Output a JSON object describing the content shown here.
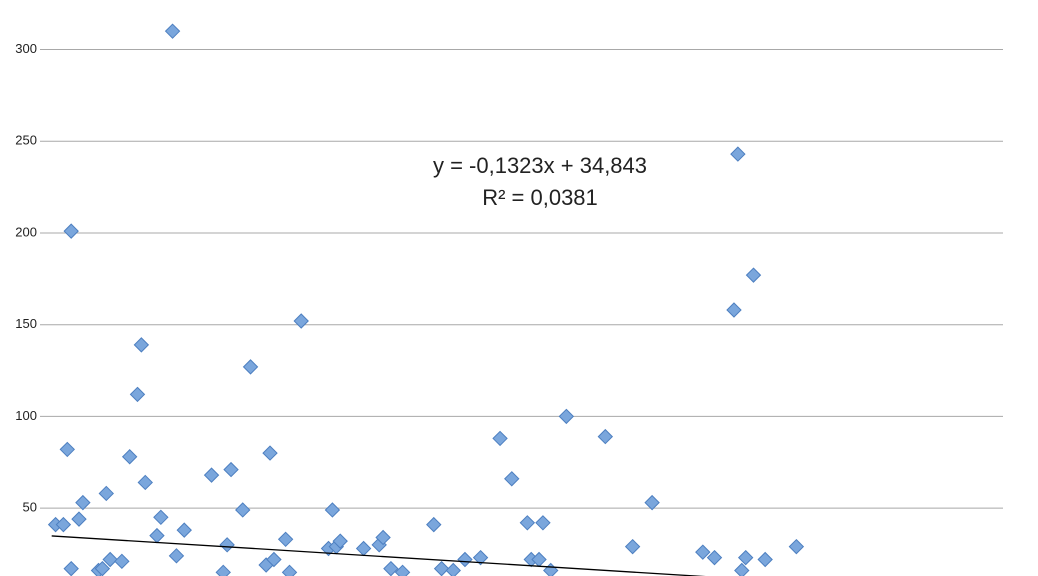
{
  "chart_data": {
    "type": "scatter",
    "color": "#7aa6dc",
    "edge_color": "#4d7fc0",
    "grid": true,
    "xlim": [
      -3,
      244
    ],
    "ylim": [
      13,
      327
    ],
    "yticks": [
      50,
      100,
      150,
      200,
      250,
      300
    ],
    "trendline": {
      "slope": -0.1323,
      "intercept": 34.843,
      "color": "#000000"
    },
    "annotations": [
      "y = -0,1323x + 34,843",
      "R² = 0,0381"
    ],
    "x": [
      1,
      3,
      4,
      5,
      5,
      7,
      8,
      14,
      12,
      13,
      15,
      18,
      20,
      22,
      23,
      24,
      27,
      28,
      31,
      32,
      34,
      41,
      44,
      45,
      46,
      49,
      51,
      55,
      56,
      57,
      60,
      61,
      64,
      71,
      72,
      73,
      74,
      80,
      84,
      85,
      87,
      90,
      98,
      100,
      103,
      106,
      110,
      115,
      118,
      122,
      123,
      126,
      125,
      128,
      132,
      142,
      149,
      154,
      167,
      170,
      175,
      176,
      177,
      178,
      180,
      183,
      191
    ],
    "values": [
      41,
      41,
      82,
      17,
      201,
      44,
      53,
      58,
      16,
      17,
      22,
      21,
      78,
      112,
      139,
      64,
      35,
      45,
      310,
      24,
      38,
      68,
      15,
      30,
      71,
      49,
      127,
      19,
      80,
      22,
      33,
      15,
      152,
      28,
      49,
      29,
      32,
      28,
      30,
      34,
      17,
      15,
      41,
      17,
      16,
      22,
      23,
      88,
      66,
      42,
      22,
      42,
      22,
      16,
      100,
      89,
      29,
      53,
      26,
      23,
      158,
      243,
      16,
      23,
      177,
      22,
      29
    ]
  }
}
